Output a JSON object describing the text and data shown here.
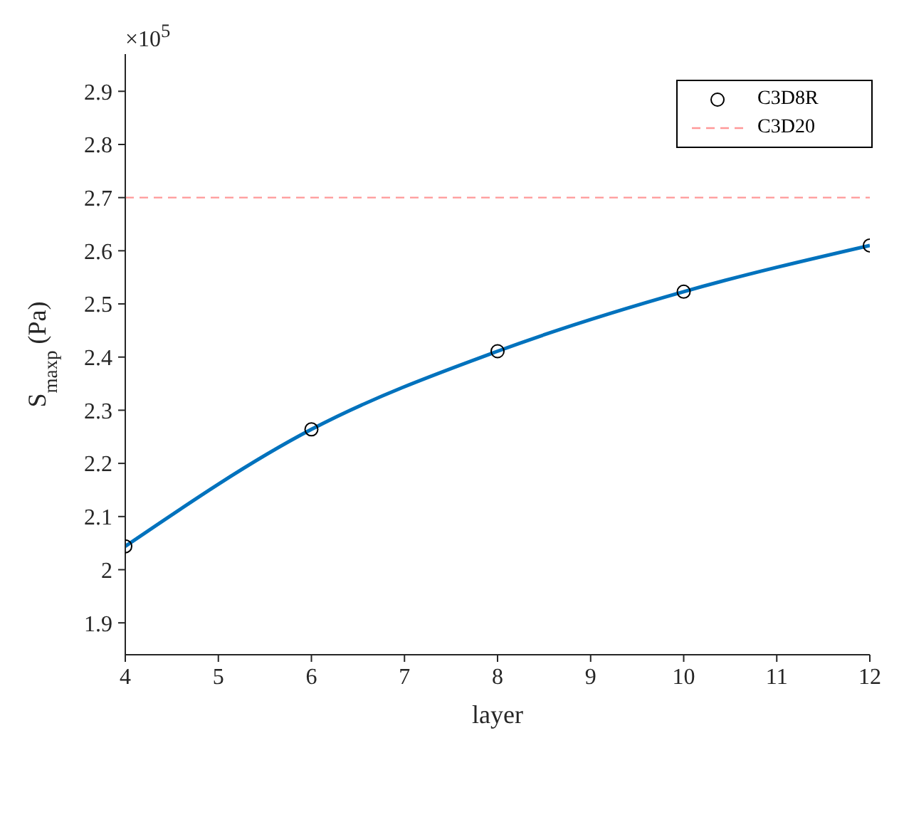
{
  "chart_data": {
    "type": "line",
    "xlabel": "layer",
    "ylabel": "S$_{maxp}$ (Pa)",
    "annotations": [
      "×10$^{5}$"
    ],
    "x": [
      4,
      6,
      8,
      10,
      12
    ],
    "series": [
      {
        "color": "#0072bd",
        "marker": "none",
        "values": [
          2.044,
          2.264,
          2.411,
          2.523,
          2.61
        ]
      },
      {
        "type": "scatter",
        "name": "C3D8R",
        "color": "#000000",
        "marker": "circle",
        "values": [
          2.044,
          2.264,
          2.411,
          2.523,
          2.61
        ]
      }
    ],
    "xlim": [
      4,
      12
    ],
    "xticks": [
      4,
      5,
      6,
      7,
      8,
      9,
      10,
      11,
      12
    ],
    "ylim": [
      1.84,
      2.97
    ],
    "yticks": [
      1.9,
      2,
      2.1,
      2.2,
      2.3,
      2.4,
      2.5,
      2.6,
      2.7,
      2.8,
      2.9
    ],
    "ref_lines": [
      {
        "axis": "y",
        "value": 2.7,
        "label": "C3D20",
        "color": "#ff9999",
        "line_style": "dashed"
      }
    ],
    "legend": "top right"
  }
}
